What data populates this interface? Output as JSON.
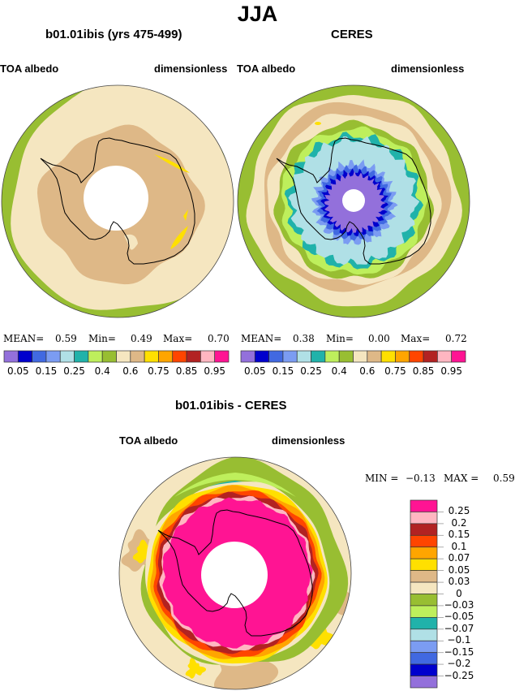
{
  "main_title": "JJA",
  "colors": {
    "abs_scale": [
      "#9370DB",
      "#0000CD",
      "#4169E1",
      "#7B9CF2",
      "#B0E0E6",
      "#20B2AA",
      "#BEEF5C",
      "#98BE32",
      "#F5E6C0",
      "#DEB887",
      "#FFE000",
      "#FFA500",
      "#FF4500",
      "#B22222",
      "#FFB6C1",
      "#FF1493"
    ],
    "diff_scale": [
      "#9370DB",
      "#0000CD",
      "#4169E1",
      "#7B9CF2",
      "#B0E0E6",
      "#20B2AA",
      "#BEEF5C",
      "#98BE32",
      "#F5E6C0",
      "#DEB887",
      "#FFE000",
      "#FFA500",
      "#FF4500",
      "#B22222",
      "#FFB6C1",
      "#FF1493"
    ],
    "coastline": "#000000"
  },
  "chart_data": [
    {
      "type": "heatmap",
      "projection": "south-polar-stereographic",
      "title": "b01.01ibis (yrs 475-499)",
      "left_label": "TOA albedo",
      "right_label": "dimensionless",
      "stats": {
        "mean_label": "MEAN=",
        "mean": "0.59",
        "min_label": "Min=",
        "min": "0.49",
        "max_label": "Max=",
        "max": "0.70"
      },
      "colorbar_ticks": [
        "0.05",
        "0.15",
        "0.25",
        "0.4",
        "0.6",
        "0.75",
        "0.85",
        "0.95"
      ],
      "rings_from_outer": [
        {
          "value_class": "0.4-0.5",
          "color_index": 7
        },
        {
          "value_class": "0.5-0.6",
          "color_index": 8
        },
        {
          "value_class": "0.6-0.65",
          "color_index": 9
        },
        {
          "value_class": "0.65-0.7",
          "color_index": 10
        }
      ]
    },
    {
      "type": "heatmap",
      "projection": "south-polar-stereographic",
      "title": "CERES",
      "left_label": "TOA albedo",
      "right_label": "dimensionless",
      "stats": {
        "mean_label": "MEAN=",
        "mean": "0.38",
        "min_label": "Min=",
        "min": "0.00",
        "max_label": "Max=",
        "max": "0.72"
      },
      "colorbar_ticks": [
        "0.05",
        "0.15",
        "0.25",
        "0.4",
        "0.6",
        "0.75",
        "0.85",
        "0.95"
      ],
      "rings_from_outer": [
        {
          "value_class": "0.4-0.5",
          "color_index": 7
        },
        {
          "value_class": "0.5-0.6",
          "color_index": 8
        },
        {
          "value_class": "0.6-0.65",
          "color_index": 9
        },
        {
          "value_class": "0.5-0.6",
          "color_index": 8
        },
        {
          "value_class": "0.4-0.5",
          "color_index": 7
        },
        {
          "value_class": "0.35-0.4",
          "color_index": 6
        },
        {
          "value_class": "0.3-0.35",
          "color_index": 5
        },
        {
          "value_class": "0.25-0.3",
          "color_index": 4
        },
        {
          "value_class": "0.15-0.2",
          "color_index": 3
        },
        {
          "value_class": "0.1-0.15",
          "color_index": 2
        },
        {
          "value_class": "0.05-0.1",
          "color_index": 1
        },
        {
          "value_class": "0-0.05",
          "color_index": 0
        }
      ]
    },
    {
      "type": "heatmap",
      "projection": "south-polar-stereographic",
      "title": "b01.01ibis - CERES",
      "left_label": "TOA albedo",
      "right_label": "dimensionless",
      "stats": {
        "min_label": "MIN =",
        "min": "−0.13",
        "max_label": "MAX =",
        "max": "0.59"
      },
      "colorbar_ticks": [
        "0.25",
        "0.2",
        "0.15",
        "0.1",
        "0.07",
        "0.05",
        "0.03",
        "0",
        "−0.03",
        "−0.05",
        "−0.07",
        "−0.1",
        "−0.15",
        "−0.2",
        "−0.25"
      ],
      "rings_from_outer": [
        {
          "value_class": "0-0.03",
          "color_index": 8
        },
        {
          "value_class": "0.03-0.05",
          "color_index": 9
        },
        {
          "value_class": "0-0.03",
          "color_index": 8
        },
        {
          "value_class": "-0.03-0",
          "color_index": 7
        },
        {
          "value_class": "0-0.03",
          "color_index": 8
        },
        {
          "value_class": "0.05-0.07",
          "color_index": 10
        },
        {
          "value_class": "0.07-0.1",
          "color_index": 11
        },
        {
          "value_class": "0.1-0.15",
          "color_index": 12
        },
        {
          "value_class": "0.15-0.2",
          "color_index": 13
        },
        {
          "value_class": "0.2-0.25",
          "color_index": 14
        },
        {
          "value_class": ">0.25",
          "color_index": 15
        }
      ]
    }
  ]
}
